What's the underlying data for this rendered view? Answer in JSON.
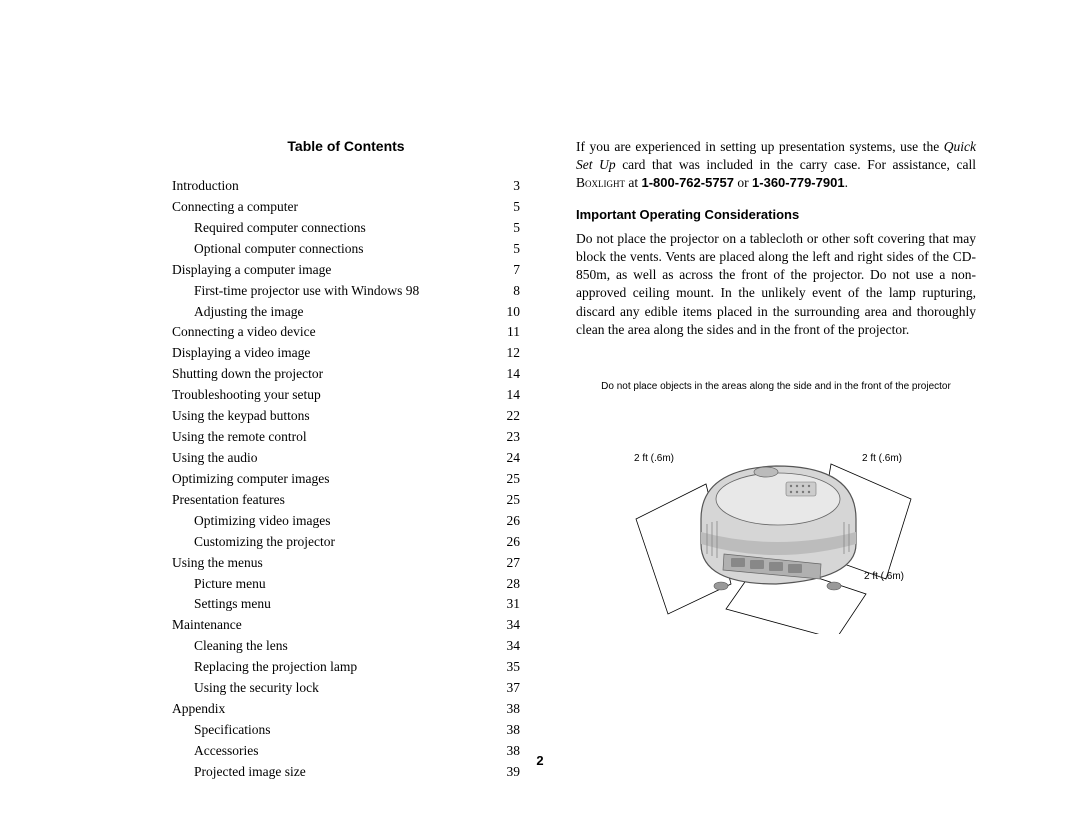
{
  "toc": {
    "title": "Table of Contents",
    "entries": [
      {
        "label": "Introduction",
        "page": "3",
        "indent": 0
      },
      {
        "label": "Connecting a computer",
        "page": "5",
        "indent": 0
      },
      {
        "label": "Required computer connections",
        "page": "5",
        "indent": 1
      },
      {
        "label": "Optional computer connections",
        "page": "5",
        "indent": 1
      },
      {
        "label": "Displaying a computer image",
        "page": "7",
        "indent": 0
      },
      {
        "label": "First-time projector use with Windows 98",
        "page": "8",
        "indent": 1
      },
      {
        "label": "Adjusting the image",
        "page": "10",
        "indent": 1
      },
      {
        "label": "Connecting a video device",
        "page": "11",
        "indent": 0
      },
      {
        "label": "Displaying a video image",
        "page": "12",
        "indent": 0
      },
      {
        "label": "Shutting down the projector",
        "page": "14",
        "indent": 0
      },
      {
        "label": "Troubleshooting your setup",
        "page": "14",
        "indent": 0
      },
      {
        "label": "Using the keypad buttons",
        "page": "22",
        "indent": 0
      },
      {
        "label": "Using the remote control",
        "page": "23",
        "indent": 0
      },
      {
        "label": "Using the audio",
        "page": "24",
        "indent": 0
      },
      {
        "label": "Optimizing computer images",
        "page": "25",
        "indent": 0
      },
      {
        "label": "Presentation features",
        "page": "25",
        "indent": 0
      },
      {
        "label": "Optimizing video images",
        "page": "26",
        "indent": 1
      },
      {
        "label": "Customizing the projector",
        "page": "26",
        "indent": 1
      },
      {
        "label": "Using the menus",
        "page": "27",
        "indent": 0
      },
      {
        "label": "Picture menu",
        "page": "28",
        "indent": 1
      },
      {
        "label": "Settings menu",
        "page": "31",
        "indent": 1
      },
      {
        "label": "Maintenance",
        "page": "34",
        "indent": 0
      },
      {
        "label": "Cleaning the lens",
        "page": "34",
        "indent": 1
      },
      {
        "label": "Replacing the projection lamp",
        "page": "35",
        "indent": 1
      },
      {
        "label": "Using the security lock",
        "page": "37",
        "indent": 1
      },
      {
        "label": "Appendix",
        "page": "38",
        "indent": 0
      },
      {
        "label": "Specifications",
        "page": "38",
        "indent": 1
      },
      {
        "label": "Accessories",
        "page": "38",
        "indent": 1
      },
      {
        "label": "Projected image size",
        "page": "39",
        "indent": 1
      }
    ]
  },
  "right": {
    "intro_1": "If you are experienced in setting up presentation systems, use the ",
    "intro_quickset": "Quick Set Up",
    "intro_2": " card that was included in the carry case. For assistance, call ",
    "intro_boxlight": "Boxlight",
    "intro_3": " at ",
    "phone_1": "1-800-762-5757",
    "or": " or ",
    "phone_2": "1-360-779-7901",
    "period": ".",
    "heading": "Important Operating Considerations",
    "body": "Do not place the projector on a tablecloth or other soft covering that may block the vents. Vents are placed along the left and right sides of the CD-850m, as well as across the front of the projector. Do not use a non-approved ceiling mount. In the unlikely event of the lamp rupturing, discard any edible items placed in the surrounding area and thoroughly clean the area along the sides and in the front of the projector.",
    "diagram_caption": "Do not place objects in the areas along the side and in the front of the projector",
    "clearance": "2 ft (.6m)"
  },
  "page_number": "2",
  "style": {
    "diagram_fill": "#d6d6d6",
    "diagram_stroke": "#4a4a4a",
    "diagram_dark": "#888888"
  }
}
